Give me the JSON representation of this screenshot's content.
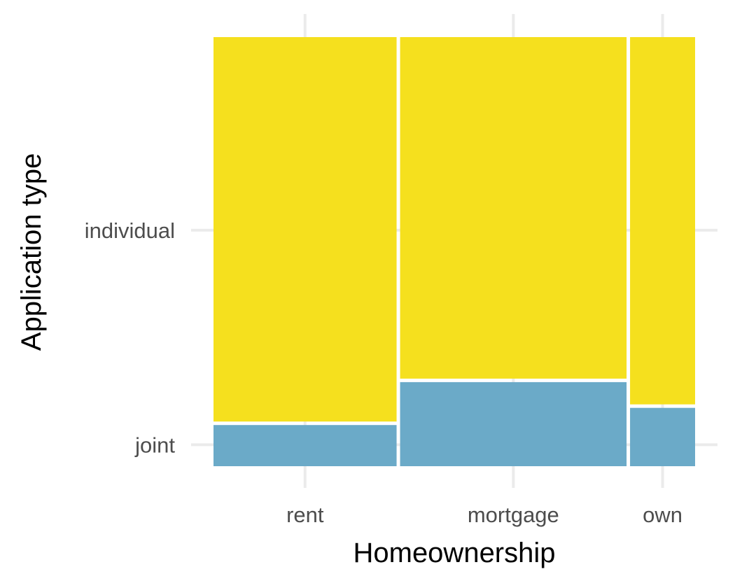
{
  "chart_data": {
    "type": "mosaic",
    "xlabel": "Homeownership",
    "ylabel": "Application type",
    "categories": [
      "rent",
      "mortgage",
      "own"
    ],
    "column_widths": [
      0.38,
      0.47,
      0.135
    ],
    "series": [
      {
        "name": "joint",
        "values": [
          0.1,
          0.2,
          0.14
        ],
        "color": "#6baac8"
      },
      {
        "name": "individual",
        "values": [
          0.9,
          0.8,
          0.86
        ],
        "color": "#f5e01e"
      }
    ],
    "y_tick_labels": [
      "joint",
      "individual"
    ],
    "grid": true,
    "legend": "none"
  }
}
